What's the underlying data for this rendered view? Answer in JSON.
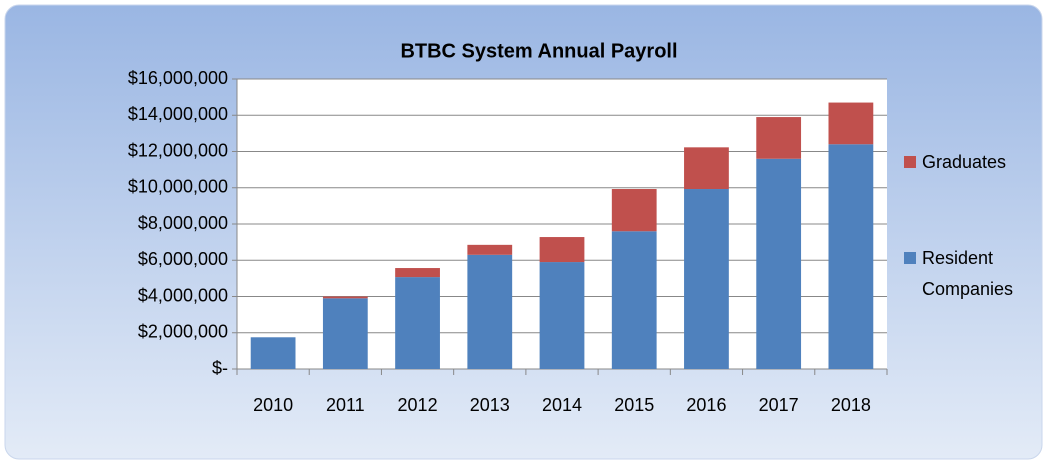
{
  "chart_data": {
    "type": "stacked_bar",
    "title": "BTBC System Annual Payroll",
    "categories": [
      "2010",
      "2011",
      "2012",
      "2013",
      "2014",
      "2015",
      "2016",
      "2017",
      "2018"
    ],
    "series": [
      {
        "name": "Resident Companies",
        "color": "#4f81bd",
        "values": [
          1750000,
          3900000,
          5070000,
          6300000,
          5900000,
          7600000,
          9930000,
          11600000,
          12400000
        ]
      },
      {
        "name": "Graduates",
        "color": "#c0504d",
        "values": [
          0,
          100000,
          500000,
          550000,
          1380000,
          2330000,
          2300000,
          2300000,
          2300000
        ]
      }
    ],
    "ylim": [
      0,
      16000000
    ],
    "yticks": [
      {
        "value": 0,
        "label": "$-"
      },
      {
        "value": 2000000,
        "label": "$2,000,000"
      },
      {
        "value": 4000000,
        "label": "$4,000,000"
      },
      {
        "value": 6000000,
        "label": "$6,000,000"
      },
      {
        "value": 8000000,
        "label": "$8,000,000"
      },
      {
        "value": 10000000,
        "label": "$10,000,000"
      },
      {
        "value": 12000000,
        "label": "$12,000,000"
      },
      {
        "value": 14000000,
        "label": "$14,000,000"
      },
      {
        "value": 16000000,
        "label": "$16,000,000"
      }
    ],
    "grid": true,
    "legend": "right"
  }
}
